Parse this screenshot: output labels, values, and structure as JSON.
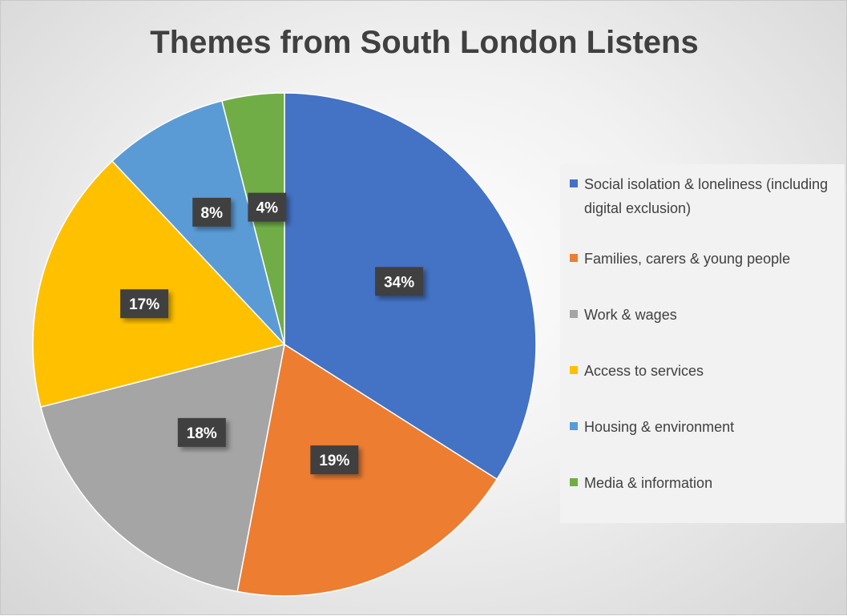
{
  "chart_data": {
    "type": "pie",
    "title": "Themes from South London Listens",
    "categories": [
      "Social isolation & loneliness (including digital exclusion)",
      "Families, carers & young people",
      "Work & wages",
      "Access to services",
      "Housing & environment",
      "Media & information"
    ],
    "values": [
      34,
      19,
      18,
      17,
      8,
      4
    ],
    "data_labels": [
      "34%",
      "19%",
      "18%",
      "17%",
      "8%",
      "4%"
    ],
    "colors": [
      "#4472C4",
      "#ED7D31",
      "#A5A5A5",
      "#FFC000",
      "#5B9BD5",
      "#70AD47"
    ],
    "legend_position": "right",
    "start_angle": "12 o'clock, clockwise"
  }
}
